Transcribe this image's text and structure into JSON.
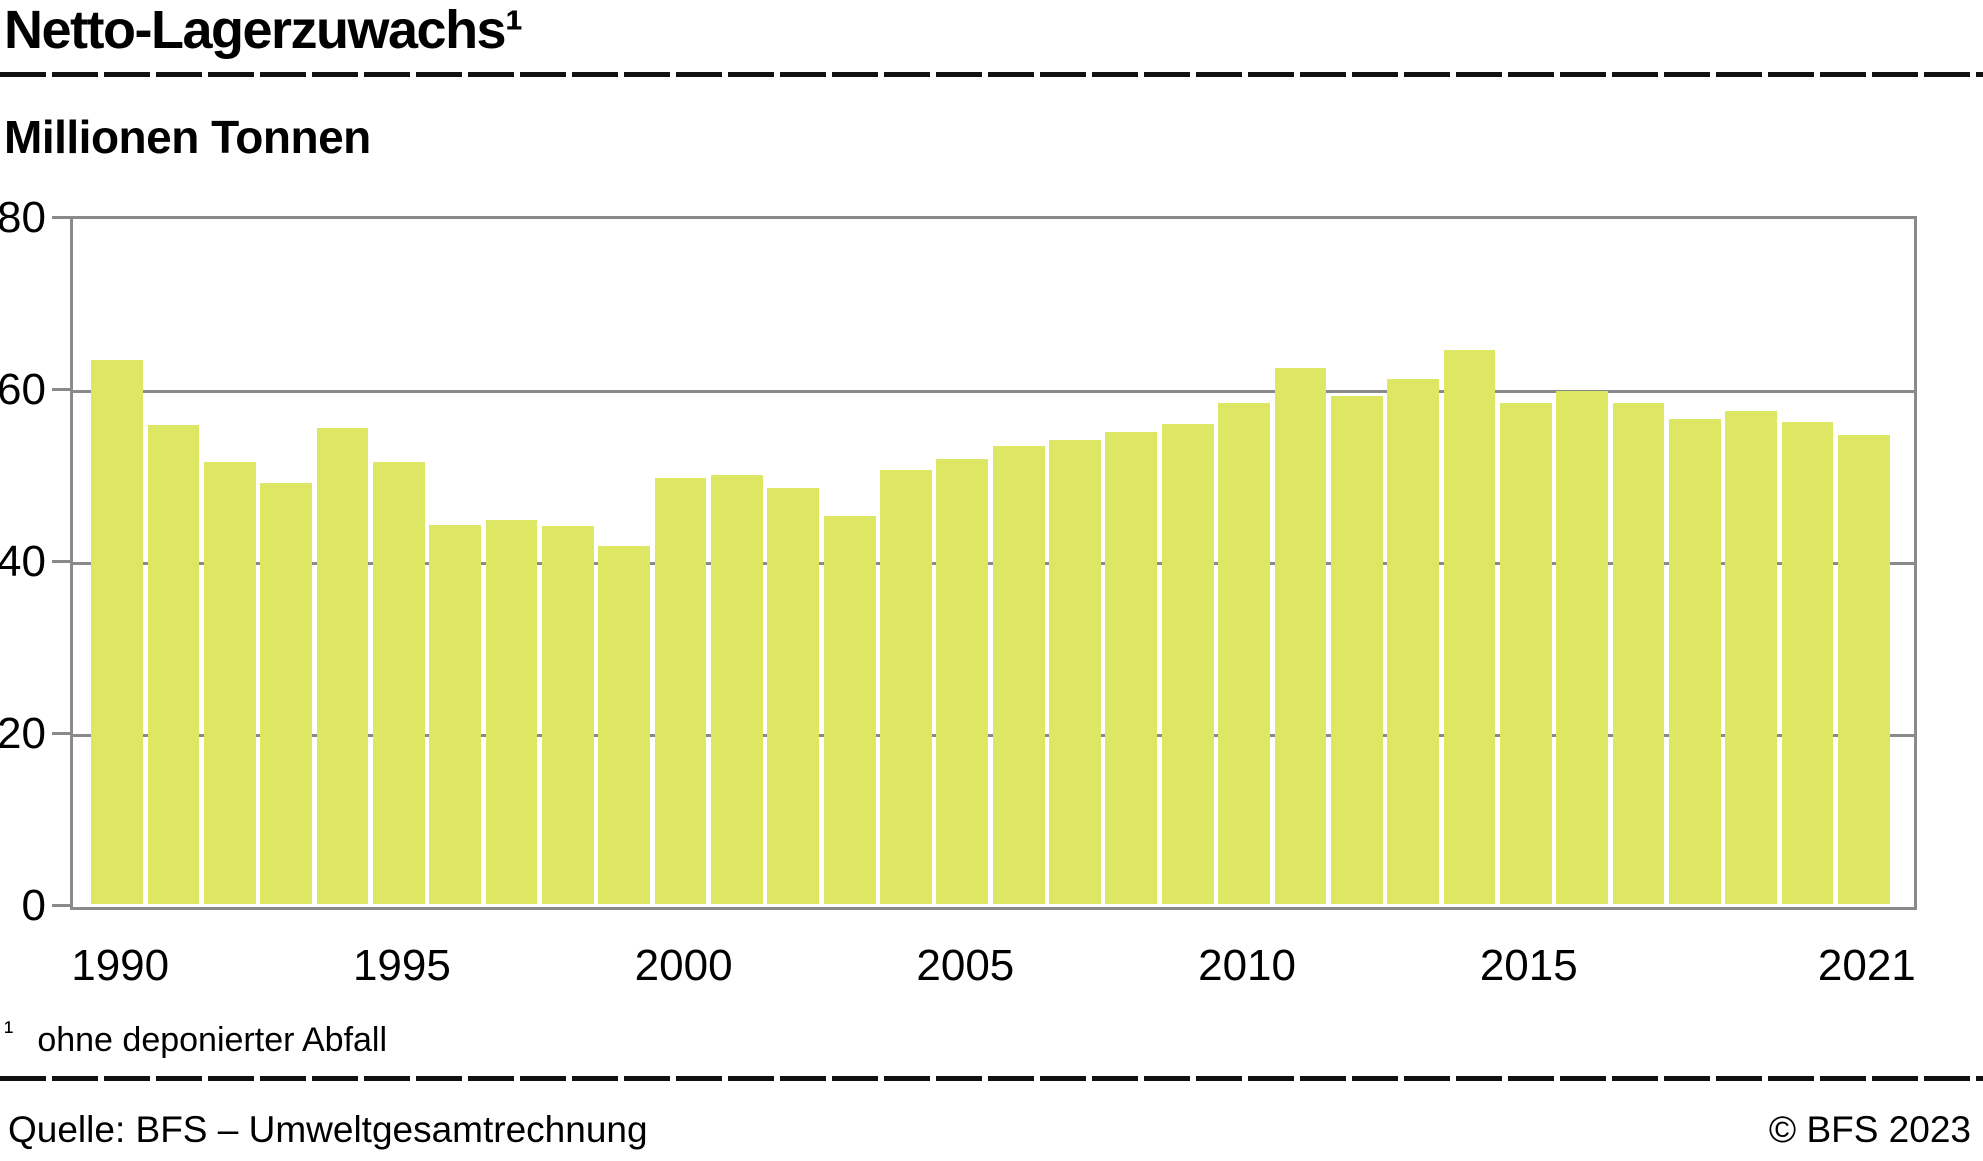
{
  "header": {
    "title": "Netto-Lagerzuwachs¹"
  },
  "subtitle": "Millionen Tonnen",
  "footnote": {
    "marker": "¹",
    "text": "ohne deponierter Abfall"
  },
  "footer": {
    "source": "Quelle: BFS – Umweltgesamtrechnung",
    "copyright": "© BFS 2023"
  },
  "chart_data": {
    "type": "bar",
    "title": "Netto-Lagerzuwachs¹",
    "ylabel": "Millionen Tonnen",
    "categories": [
      1990,
      1991,
      1992,
      1993,
      1994,
      1995,
      1996,
      1997,
      1998,
      1999,
      2000,
      2001,
      2002,
      2003,
      2004,
      2005,
      2006,
      2007,
      2008,
      2009,
      2010,
      2011,
      2012,
      2013,
      2014,
      2015,
      2016,
      2017,
      2018,
      2019,
      2020,
      2021
    ],
    "values": [
      63.3,
      55.7,
      51.4,
      49.0,
      55.4,
      51.4,
      44.1,
      44.7,
      43.9,
      41.6,
      49.5,
      49.9,
      48.4,
      45.1,
      50.5,
      51.7,
      53.3,
      53.9,
      54.9,
      55.8,
      58.2,
      62.3,
      59.1,
      61.1,
      64.4,
      58.2,
      59.6,
      58.2,
      56.4,
      57.3,
      56.0,
      54.5
    ],
    "ylim": [
      0,
      80
    ],
    "yticks": [
      0,
      20,
      40,
      60,
      80
    ],
    "ytick_labels": [
      "0",
      "20",
      "40",
      "60",
      "80"
    ],
    "xtick_labels": [
      "1990",
      "1995",
      "2000",
      "2005",
      "2010",
      "2015",
      "2021"
    ],
    "grid": "horizontal",
    "legend": false,
    "bar_color": "#dee763",
    "axis_color": "#8a8a8a",
    "text_color": "#000000"
  }
}
